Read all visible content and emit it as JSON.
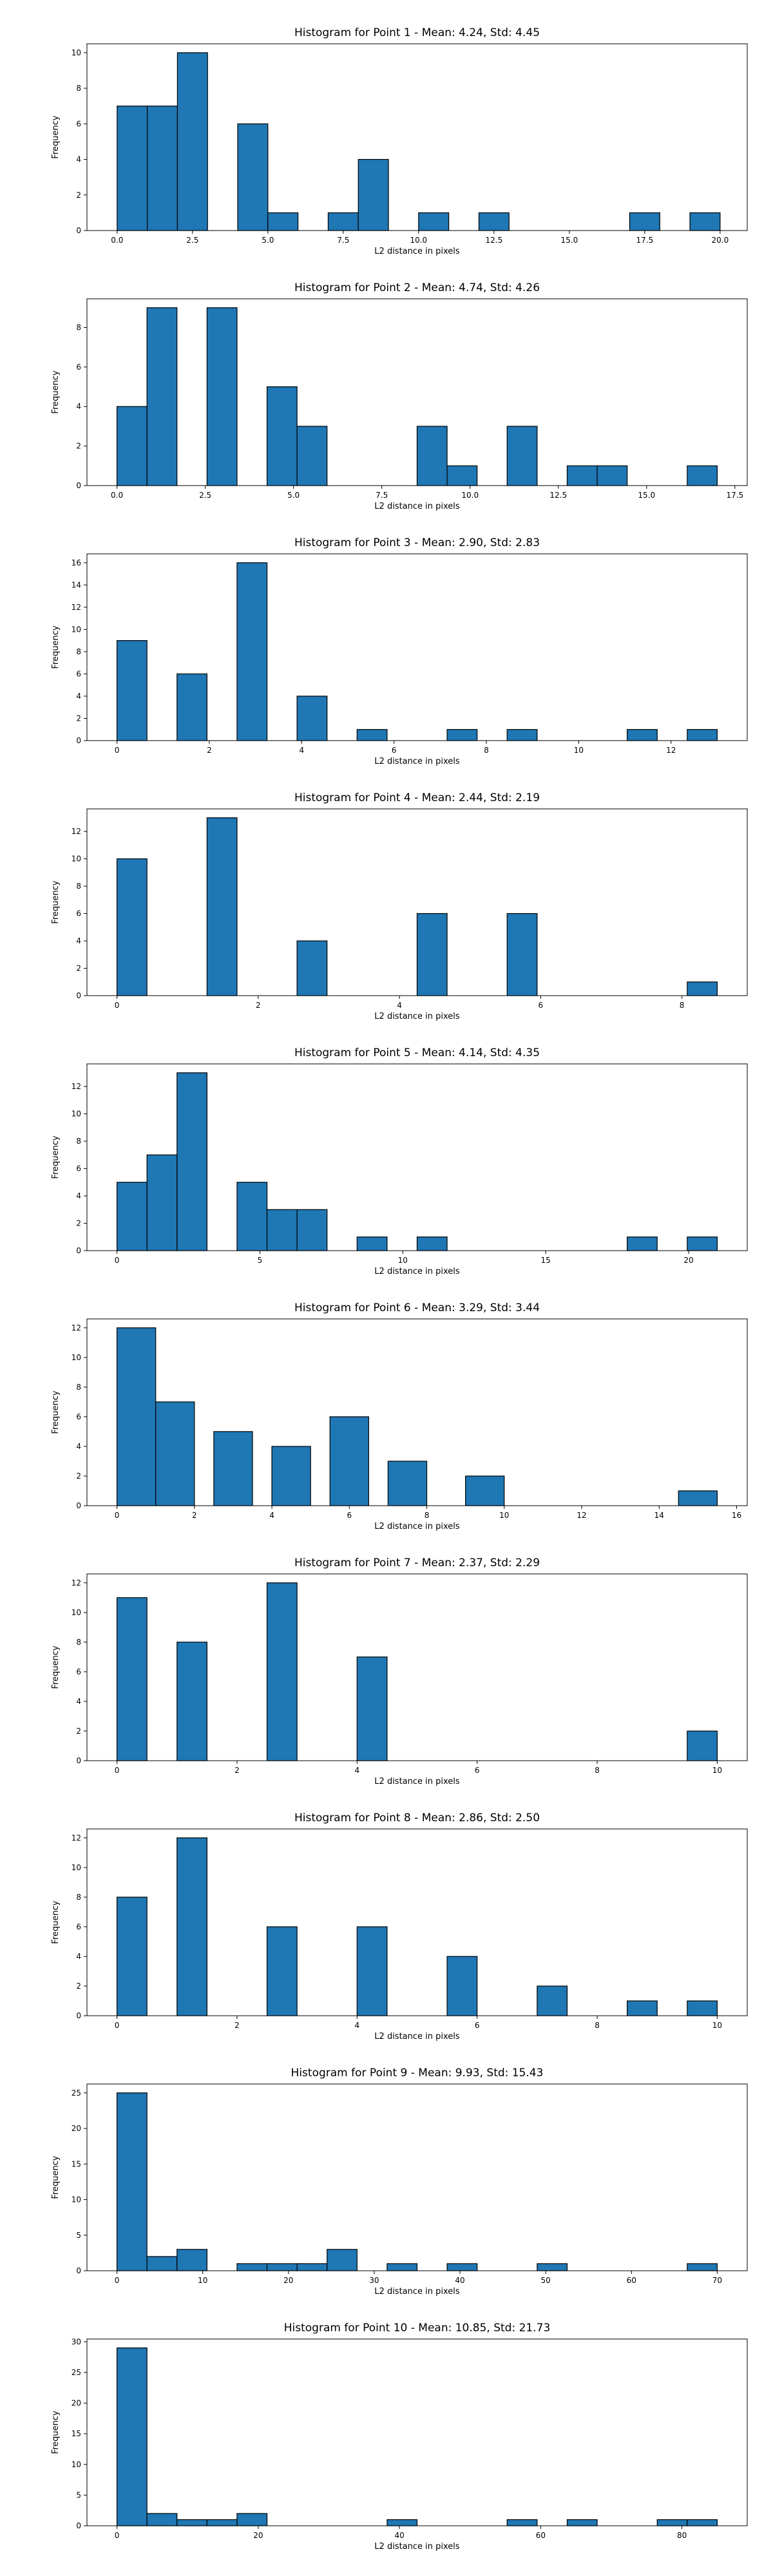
{
  "chart_data": [
    {
      "type": "bar",
      "title": "Histogram for Point 1 - Mean: 4.24, Std: 4.45",
      "xlabel": "L2 distance in pixels",
      "ylabel": "Frequency",
      "xlim": [
        -1,
        20.9
      ],
      "ylim": [
        0,
        10.5
      ],
      "xticks": [
        0.0,
        2.5,
        5.0,
        7.5,
        10.0,
        12.5,
        15.0,
        17.5,
        20.0
      ],
      "xtick_labels": [
        "0.0",
        "2.5",
        "5.0",
        "7.5",
        "10.0",
        "12.5",
        "15.0",
        "17.5",
        "20.0"
      ],
      "yticks": [
        0,
        2,
        4,
        6,
        8,
        10
      ],
      "ytick_labels": [
        "0",
        "2",
        "4",
        "6",
        "8",
        "10"
      ],
      "bins": [
        [
          0.0,
          1.0
        ],
        [
          1.0,
          2.0
        ],
        [
          2.0,
          3.0
        ],
        [
          4.0,
          5.0
        ],
        [
          5.0,
          6.0
        ],
        [
          7.0,
          8.0
        ],
        [
          8.0,
          9.0
        ],
        [
          10.0,
          11.0
        ],
        [
          12.0,
          13.0
        ],
        [
          17.0,
          18.0
        ],
        [
          19.0,
          20.0
        ]
      ],
      "values": [
        7,
        7,
        10,
        6,
        1,
        1,
        4,
        1,
        1,
        1,
        1
      ]
    },
    {
      "type": "bar",
      "title": "Histogram for Point 2 - Mean: 4.74, Std: 4.26",
      "xlabel": "L2 distance in pixels",
      "ylabel": "Frequency",
      "xlim": [
        -0.85,
        17.85
      ],
      "ylim": [
        0,
        9.45
      ],
      "xticks": [
        0.0,
        2.5,
        5.0,
        7.5,
        10.0,
        12.5,
        15.0,
        17.5
      ],
      "xtick_labels": [
        "0.0",
        "2.5",
        "5.0",
        "7.5",
        "10.0",
        "12.5",
        "15.0",
        "17.5"
      ],
      "yticks": [
        0,
        2,
        4,
        6,
        8
      ],
      "ytick_labels": [
        "0",
        "2",
        "4",
        "6",
        "8"
      ],
      "bins": [
        [
          0.0,
          0.85
        ],
        [
          0.85,
          1.7
        ],
        [
          2.55,
          3.4
        ],
        [
          4.25,
          5.1
        ],
        [
          5.1,
          5.95
        ],
        [
          8.5,
          9.35
        ],
        [
          9.35,
          10.2
        ],
        [
          11.05,
          11.9
        ],
        [
          12.75,
          13.6
        ],
        [
          13.6,
          14.45
        ],
        [
          16.15,
          17.0
        ]
      ],
      "values": [
        4,
        9,
        9,
        5,
        3,
        3,
        1,
        3,
        1,
        1,
        1
      ]
    },
    {
      "type": "bar",
      "title": "Histogram for Point 3 - Mean: 2.90, Std: 2.83",
      "xlabel": "L2 distance in pixels",
      "ylabel": "Frequency",
      "xlim": [
        -0.65,
        13.65
      ],
      "ylim": [
        0,
        16.8
      ],
      "xticks": [
        0,
        2,
        4,
        6,
        8,
        10,
        12
      ],
      "xtick_labels": [
        "0",
        "2",
        "4",
        "6",
        "8",
        "10",
        "12"
      ],
      "yticks": [
        0,
        2,
        4,
        6,
        8,
        10,
        12,
        14,
        16
      ],
      "ytick_labels": [
        "0",
        "2",
        "4",
        "6",
        "8",
        "10",
        "12",
        "14",
        "16"
      ],
      "bins": [
        [
          0.0,
          0.65
        ],
        [
          1.3,
          1.95
        ],
        [
          2.6,
          3.25
        ],
        [
          3.9,
          4.55
        ],
        [
          5.2,
          5.85
        ],
        [
          7.15,
          7.8
        ],
        [
          8.45,
          9.1
        ],
        [
          11.05,
          11.7
        ],
        [
          12.35,
          13.0
        ]
      ],
      "values": [
        9,
        6,
        16,
        4,
        1,
        1,
        1,
        1,
        1
      ]
    },
    {
      "type": "bar",
      "title": "Histogram for Point 4 - Mean: 2.44, Std: 2.19",
      "xlabel": "L2 distance in pixels",
      "ylabel": "Frequency",
      "xlim": [
        -0.425,
        8.925
      ],
      "ylim": [
        0,
        13.65
      ],
      "xticks": [
        0,
        2,
        4,
        6,
        8
      ],
      "xtick_labels": [
        "0",
        "2",
        "4",
        "6",
        "8"
      ],
      "yticks": [
        0,
        2,
        4,
        6,
        8,
        10,
        12
      ],
      "ytick_labels": [
        "0",
        "2",
        "4",
        "6",
        "8",
        "10",
        "12"
      ],
      "bins": [
        [
          0.0,
          0.425
        ],
        [
          1.275,
          1.7
        ],
        [
          2.55,
          2.975
        ],
        [
          4.25,
          4.675
        ],
        [
          5.525,
          5.95
        ],
        [
          8.075,
          8.5
        ]
      ],
      "values": [
        10,
        13,
        4,
        6,
        6,
        1
      ]
    },
    {
      "type": "bar",
      "title": "Histogram for Point 5 - Mean: 4.14, Std: 4.35",
      "xlabel": "L2 distance in pixels",
      "ylabel": "Frequency",
      "xlim": [
        -1.05,
        22.05
      ],
      "ylim": [
        0,
        13.65
      ],
      "xticks": [
        0,
        5,
        10,
        15,
        20
      ],
      "xtick_labels": [
        "0",
        "5",
        "10",
        "15",
        "20"
      ],
      "yticks": [
        0,
        2,
        4,
        6,
        8,
        10,
        12
      ],
      "ytick_labels": [
        "0",
        "2",
        "4",
        "6",
        "8",
        "10",
        "12"
      ],
      "bins": [
        [
          0.0,
          1.05
        ],
        [
          1.05,
          2.1
        ],
        [
          2.1,
          3.15
        ],
        [
          4.2,
          5.25
        ],
        [
          5.25,
          6.3
        ],
        [
          6.3,
          7.35
        ],
        [
          8.4,
          9.45
        ],
        [
          10.5,
          11.55
        ],
        [
          17.85,
          18.9
        ],
        [
          19.95,
          21.0
        ]
      ],
      "values": [
        5,
        7,
        13,
        5,
        3,
        3,
        1,
        1,
        1,
        1
      ]
    },
    {
      "type": "bar",
      "title": "Histogram for Point 6 - Mean: 3.29, Std: 3.44",
      "xlabel": "L2 distance in pixels",
      "ylabel": "Frequency",
      "xlim": [
        -0.775,
        16.275
      ],
      "ylim": [
        0,
        12.6
      ],
      "xticks": [
        0,
        2,
        4,
        6,
        8,
        10,
        12,
        14,
        16
      ],
      "xtick_labels": [
        "0",
        "2",
        "4",
        "6",
        "8",
        "10",
        "12",
        "14",
        "16"
      ],
      "yticks": [
        0,
        2,
        4,
        6,
        8,
        10,
        12
      ],
      "ytick_labels": [
        "0",
        "2",
        "4",
        "6",
        "8",
        "10",
        "12"
      ],
      "bins": [
        [
          0.0,
          1.0
        ],
        [
          1.0,
          2.0
        ],
        [
          2.5,
          3.5
        ],
        [
          4.0,
          5.0
        ],
        [
          5.5,
          6.5
        ],
        [
          7.0,
          8.0
        ],
        [
          9.0,
          10.0
        ],
        [
          14.5,
          15.5
        ]
      ],
      "values": [
        12,
        7,
        5,
        4,
        6,
        3,
        2,
        1
      ]
    },
    {
      "type": "bar",
      "title": "Histogram for Point 7 - Mean: 2.37, Std: 2.29",
      "xlabel": "L2 distance in pixels",
      "ylabel": "Frequency",
      "xlim": [
        -0.5,
        10.5
      ],
      "ylim": [
        0,
        12.6
      ],
      "xticks": [
        0,
        2,
        4,
        6,
        8,
        10
      ],
      "xtick_labels": [
        "0",
        "2",
        "4",
        "6",
        "8",
        "10"
      ],
      "yticks": [
        0,
        2,
        4,
        6,
        8,
        10,
        12
      ],
      "ytick_labels": [
        "0",
        "2",
        "4",
        "6",
        "8",
        "10",
        "12"
      ],
      "bins": [
        [
          0.0,
          0.5
        ],
        [
          1.0,
          1.5
        ],
        [
          2.5,
          3.0
        ],
        [
          4.0,
          4.5
        ],
        [
          9.5,
          10.0
        ]
      ],
      "values": [
        11,
        8,
        12,
        7,
        2
      ]
    },
    {
      "type": "bar",
      "title": "Histogram for Point 8 - Mean: 2.86, Std: 2.50",
      "xlabel": "L2 distance in pixels",
      "ylabel": "Frequency",
      "xlim": [
        -0.5,
        10.5
      ],
      "ylim": [
        0,
        12.6
      ],
      "xticks": [
        0,
        2,
        4,
        6,
        8,
        10
      ],
      "xtick_labels": [
        "0",
        "2",
        "4",
        "6",
        "8",
        "10"
      ],
      "yticks": [
        0,
        2,
        4,
        6,
        8,
        10,
        12
      ],
      "ytick_labels": [
        "0",
        "2",
        "4",
        "6",
        "8",
        "10",
        "12"
      ],
      "bins": [
        [
          0.0,
          0.5
        ],
        [
          1.0,
          1.5
        ],
        [
          2.5,
          3.0
        ],
        [
          4.0,
          4.5
        ],
        [
          5.5,
          6.0
        ],
        [
          7.0,
          7.5
        ],
        [
          8.5,
          9.0
        ],
        [
          9.5,
          10.0
        ]
      ],
      "values": [
        8,
        12,
        6,
        6,
        4,
        2,
        1,
        1
      ]
    },
    {
      "type": "bar",
      "title": "Histogram for Point 9 - Mean: 9.93, Std: 15.43",
      "xlabel": "L2 distance in pixels",
      "ylabel": "Frequency",
      "xlim": [
        -3.5,
        73.5
      ],
      "ylim": [
        0,
        26.25
      ],
      "xticks": [
        0,
        10,
        20,
        30,
        40,
        50,
        60,
        70
      ],
      "xtick_labels": [
        "0",
        "10",
        "20",
        "30",
        "40",
        "50",
        "60",
        "70"
      ],
      "yticks": [
        0,
        5,
        10,
        15,
        20,
        25
      ],
      "ytick_labels": [
        "0",
        "5",
        "10",
        "15",
        "20",
        "25"
      ],
      "bins": [
        [
          0.0,
          3.5
        ],
        [
          3.5,
          7.0
        ],
        [
          7.0,
          10.5
        ],
        [
          14.0,
          17.5
        ],
        [
          17.5,
          21.0
        ],
        [
          21.0,
          24.5
        ],
        [
          24.5,
          28.0
        ],
        [
          31.5,
          35.0
        ],
        [
          38.5,
          42.0
        ],
        [
          49.0,
          52.5
        ],
        [
          66.5,
          70.0
        ]
      ],
      "values": [
        25,
        2,
        3,
        1,
        1,
        1,
        3,
        1,
        1,
        1,
        1
      ]
    },
    {
      "type": "bar",
      "title": "Histogram for Point 10 - Mean: 10.85, Std: 21.73",
      "xlabel": "L2 distance in pixels",
      "ylabel": "Frequency",
      "xlim": [
        -4.25,
        89.25
      ],
      "ylim": [
        0,
        30.45
      ],
      "xticks": [
        0,
        20,
        40,
        60,
        80
      ],
      "xtick_labels": [
        "0",
        "20",
        "40",
        "60",
        "80"
      ],
      "yticks": [
        0,
        5,
        10,
        15,
        20,
        25,
        30
      ],
      "ytick_labels": [
        "0",
        "5",
        "10",
        "15",
        "20",
        "25",
        "30"
      ],
      "bins": [
        [
          0.0,
          4.25
        ],
        [
          4.25,
          8.5
        ],
        [
          8.5,
          12.75
        ],
        [
          12.75,
          17.0
        ],
        [
          17.0,
          21.25
        ],
        [
          38.25,
          42.5
        ],
        [
          55.25,
          59.5
        ],
        [
          63.75,
          68.0
        ],
        [
          76.5,
          80.75
        ],
        [
          80.75,
          85.0
        ]
      ],
      "values": [
        29,
        2,
        1,
        1,
        2,
        1,
        1,
        1,
        1,
        1
      ]
    }
  ]
}
